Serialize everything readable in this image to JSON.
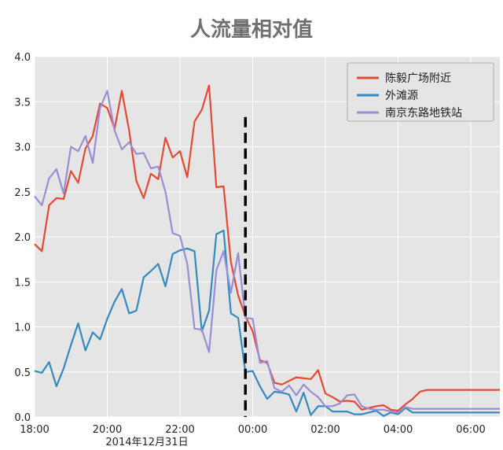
{
  "chart_data": {
    "type": "line",
    "title": "人流量相对值",
    "date_label": "2014年12月31日",
    "xlabel": "",
    "ylabel": "",
    "x_unit": "hours since 18:00 on 2014-12-31",
    "xlim": [
      0,
      12.8
    ],
    "ylim": [
      0,
      4.0
    ],
    "x_ticks": [
      {
        "x": 0,
        "label": "18:00"
      },
      {
        "x": 2,
        "label": "20:00"
      },
      {
        "x": 4,
        "label": "22:00"
      },
      {
        "x": 6,
        "label": "00:00"
      },
      {
        "x": 8,
        "label": "02:00"
      },
      {
        "x": 10,
        "label": "04:00"
      },
      {
        "x": 12,
        "label": "06:00"
      }
    ],
    "y_ticks": [
      "0.0",
      "0.5",
      "1.0",
      "1.5",
      "2.0",
      "2.5",
      "3.0",
      "3.5",
      "4.0"
    ],
    "grid": true,
    "legend_position": "top-right",
    "vline": {
      "x": 5.8,
      "y0": 0,
      "y1": 3.33,
      "style": "dashed",
      "color": "#000000"
    },
    "series": [
      {
        "name": "陈毅广场附近",
        "color": "#e24a33",
        "x": [
          0,
          0.2,
          0.4,
          0.6,
          0.8,
          1.0,
          1.2,
          1.4,
          1.6,
          1.8,
          2.0,
          2.2,
          2.4,
          2.6,
          2.8,
          3.0,
          3.2,
          3.4,
          3.6,
          3.8,
          4.0,
          4.2,
          4.4,
          4.6,
          4.8,
          5.0,
          5.2,
          5.4,
          5.6,
          5.8,
          6.0,
          6.2,
          6.4,
          6.6,
          6.8,
          7.0,
          7.2,
          7.4,
          7.6,
          7.8,
          8.0,
          8.2,
          8.4,
          8.6,
          8.8,
          9.0,
          9.2,
          9.4,
          9.6,
          9.8,
          10.0,
          10.2,
          10.4,
          10.6,
          10.8,
          11.0,
          11.2,
          11.4,
          11.6,
          11.8,
          12.0,
          12.2,
          12.4,
          12.6,
          12.8
        ],
        "values": [
          1.92,
          1.84,
          2.35,
          2.43,
          2.42,
          2.73,
          2.6,
          2.98,
          3.12,
          3.48,
          3.43,
          3.2,
          3.62,
          3.18,
          2.62,
          2.43,
          2.7,
          2.64,
          3.1,
          2.88,
          2.95,
          2.66,
          3.28,
          3.41,
          3.68,
          2.55,
          2.56,
          1.72,
          1.35,
          1.12,
          0.95,
          0.63,
          0.6,
          0.38,
          0.36,
          0.4,
          0.44,
          0.43,
          0.42,
          0.52,
          0.26,
          0.22,
          0.17,
          0.18,
          0.17,
          0.08,
          0.1,
          0.12,
          0.13,
          0.08,
          0.07,
          0.14,
          0.2,
          0.28,
          0.3,
          0.3,
          0.3,
          0.3,
          0.3,
          0.3,
          0.3,
          0.3,
          0.3,
          0.3,
          0.3
        ]
      },
      {
        "name": "外滩源",
        "color": "#348abd",
        "x": [
          0,
          0.2,
          0.4,
          0.6,
          0.8,
          1.0,
          1.2,
          1.4,
          1.6,
          1.8,
          2.0,
          2.2,
          2.4,
          2.6,
          2.8,
          3.0,
          3.2,
          3.4,
          3.6,
          3.8,
          4.0,
          4.2,
          4.4,
          4.6,
          4.8,
          5.0,
          5.2,
          5.4,
          5.6,
          5.8,
          6.0,
          6.2,
          6.4,
          6.6,
          6.8,
          7.0,
          7.2,
          7.4,
          7.6,
          7.8,
          8.0,
          8.2,
          8.4,
          8.6,
          8.8,
          9.0,
          9.2,
          9.4,
          9.6,
          9.8,
          10.0,
          10.2,
          10.4,
          10.6,
          10.8,
          11.0,
          11.2,
          11.4,
          11.6,
          11.8,
          12.0,
          12.2,
          12.4,
          12.6,
          12.8
        ],
        "values": [
          0.51,
          0.49,
          0.61,
          0.34,
          0.54,
          0.8,
          1.04,
          0.74,
          0.94,
          0.86,
          1.09,
          1.28,
          1.42,
          1.15,
          1.18,
          1.55,
          1.62,
          1.7,
          1.45,
          1.81,
          1.85,
          1.87,
          1.84,
          0.95,
          1.18,
          2.03,
          2.07,
          1.15,
          1.1,
          0.5,
          0.51,
          0.34,
          0.2,
          0.28,
          0.27,
          0.25,
          0.06,
          0.27,
          0.02,
          0.12,
          0.12,
          0.06,
          0.06,
          0.06,
          0.03,
          0.03,
          0.05,
          0.07,
          0.01,
          0.05,
          0.03,
          0.1,
          0.05,
          0.05,
          0.05,
          0.05,
          0.05,
          0.05,
          0.05,
          0.05,
          0.05,
          0.05,
          0.05,
          0.05,
          0.05
        ]
      },
      {
        "name": "南京东路地铁站",
        "color": "#988ed5",
        "x": [
          0,
          0.2,
          0.4,
          0.6,
          0.8,
          1.0,
          1.2,
          1.4,
          1.6,
          1.8,
          2.0,
          2.2,
          2.4,
          2.6,
          2.8,
          3.0,
          3.2,
          3.4,
          3.6,
          3.8,
          4.0,
          4.2,
          4.4,
          4.6,
          4.8,
          5.0,
          5.2,
          5.4,
          5.6,
          5.8,
          6.0,
          6.2,
          6.4,
          6.6,
          6.8,
          7.0,
          7.2,
          7.4,
          7.6,
          7.8,
          8.0,
          8.2,
          8.4,
          8.6,
          8.8,
          9.0,
          9.2,
          9.4,
          9.6,
          9.8,
          10.0,
          10.2,
          10.4,
          10.6,
          10.8,
          11.0,
          11.2,
          11.4,
          11.6,
          11.8,
          12.0,
          12.2,
          12.4,
          12.6,
          12.8
        ],
        "values": [
          2.45,
          2.35,
          2.65,
          2.75,
          2.48,
          3.0,
          2.95,
          3.12,
          2.82,
          3.43,
          3.62,
          3.18,
          2.97,
          3.05,
          2.92,
          2.93,
          2.76,
          2.78,
          2.5,
          2.04,
          2.01,
          1.7,
          0.98,
          0.97,
          0.72,
          1.63,
          1.84,
          1.38,
          1.82,
          1.1,
          1.09,
          0.6,
          0.62,
          0.32,
          0.28,
          0.35,
          0.24,
          0.36,
          0.28,
          0.22,
          0.12,
          0.12,
          0.15,
          0.24,
          0.25,
          0.12,
          0.09,
          0.08,
          0.08,
          0.06,
          0.05,
          0.11,
          0.09,
          0.09,
          0.09,
          0.09,
          0.09,
          0.09,
          0.09,
          0.09,
          0.09,
          0.09,
          0.09,
          0.09,
          0.09
        ]
      }
    ]
  }
}
